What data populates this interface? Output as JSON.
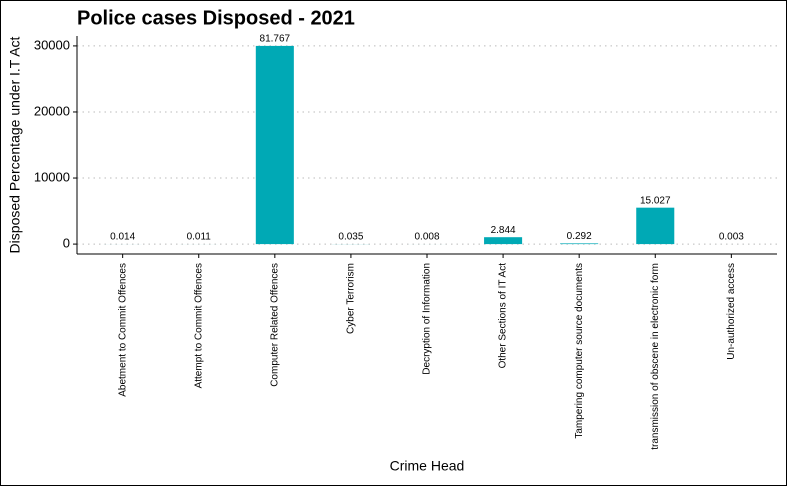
{
  "chart_data": {
    "type": "bar",
    "title": "Police cases Disposed  - 2021",
    "x_label": "Crime Head",
    "y_label": "Disposed Percentage under I.T Act",
    "categories": [
      "Abetment to Commit Offences",
      "Attempt to Commit Offences",
      "Computer Related Offences",
      "Cyber Terrorism",
      "Decryption of Information",
      "Other Sections of IT Act",
      "Tampering computer source documents",
      "transmission of obscene in electronic form",
      "Un-authorized access"
    ],
    "values": [
      5,
      4,
      30000,
      13,
      3,
      1044,
      107,
      5515,
      1
    ],
    "percentages": [
      0.014,
      0.011,
      81.767,
      0.035,
      0.008,
      2.844,
      0.292,
      15.027,
      0.003
    ],
    "color": "#00a9b5",
    "ylim": [
      -1500,
      31500
    ],
    "yticks": [
      0,
      10000,
      20000,
      30000
    ],
    "grid": true
  }
}
